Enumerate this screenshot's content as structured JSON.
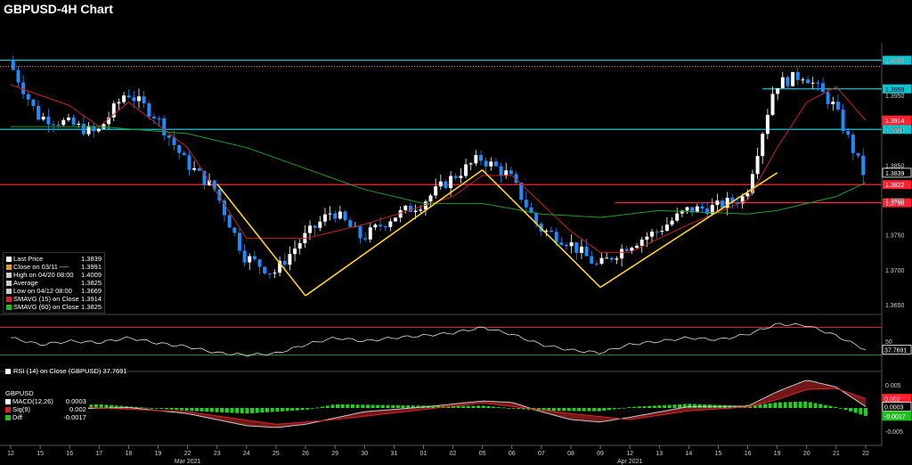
{
  "title": "GBPUSD-4H Chart",
  "colors": {
    "background": "#000000",
    "candle_up": "#ffffff",
    "candle_down": "#1e8cff",
    "sma15": "#c8201e",
    "sma60": "#1e9e2a",
    "cyan_level": "#00c8d2",
    "red_level": "#ff2030",
    "pattern": "#ffd21e",
    "rsi_line": "#dddddd"
  },
  "legend": [
    {
      "label": "Last Price",
      "value": "1.3839",
      "color": "#ffffff"
    },
    {
      "label": "Close on 03/11 ----",
      "value": "1.3991",
      "color": "#e69a22"
    },
    {
      "label": "High on 04/20 08:00",
      "value": "1.4009",
      "color": "#cccccc"
    },
    {
      "label": "Average",
      "value": "1.3825",
      "color": "#cccccc"
    },
    {
      "label": "Low on 04/12 08:00",
      "value": "1.3669",
      "color": "#cccccc"
    },
    {
      "label": "SMAVG (15) on Close",
      "value": "1.3914",
      "color": "#e02020"
    },
    {
      "label": "SMAVG (60) on Close",
      "value": "1.3825",
      "color": "#20c020"
    }
  ],
  "rsi_legend": {
    "label": "RSI (14) on Close (GBPUSD) 37.7691",
    "color": "#ffffff"
  },
  "macd_legend": {
    "title": "GBPUSD",
    "rows": [
      {
        "label": "MACD(12,26)",
        "value": "0.0003",
        "color": "#ffffff"
      },
      {
        "label": "Sig(9)",
        "value": "0.002",
        "color": "#e02020"
      },
      {
        "label": "Diff",
        "value": "-0.0017",
        "color": "#20c020"
      }
    ]
  },
  "chart_data": [
    {
      "type": "candlestick",
      "title": "GBPUSD-4H Chart",
      "ylim": [
        1.364,
        1.4025
      ],
      "y_ticks": [
        "1.3650",
        "1.3700",
        "1.3750",
        "1.3800",
        "1.3850",
        "1.3900",
        "1.3950",
        "1.4000"
      ],
      "x_ticks": [
        "12",
        "15",
        "16",
        "17",
        "18",
        "19",
        "22",
        "23",
        "24",
        "25",
        "26",
        "29",
        "30",
        "31",
        "01",
        "02",
        "05",
        "06",
        "07",
        "08",
        "09",
        "12",
        "13",
        "14",
        "15",
        "16",
        "19",
        "20",
        "21",
        "22"
      ],
      "month_labels": [
        {
          "label": "Mar 2021",
          "at": "22"
        },
        {
          "label": "Apr 2021",
          "at": "12"
        }
      ],
      "close_path": [
        [
          "12",
          1.4
        ],
        [
          "15",
          1.392
        ],
        [
          "16",
          1.391
        ],
        [
          "17",
          1.3895
        ],
        [
          "18",
          1.3955
        ],
        [
          "19",
          1.392
        ],
        [
          "22",
          1.3855
        ],
        [
          "23",
          1.3815
        ],
        [
          "24",
          1.372
        ],
        [
          "25",
          1.3695
        ],
        [
          "26",
          1.3745
        ],
        [
          "29",
          1.3785
        ],
        [
          "30",
          1.3745
        ],
        [
          "31",
          1.3775
        ],
        [
          "01",
          1.3795
        ],
        [
          "02",
          1.383
        ],
        [
          "05",
          1.386
        ],
        [
          "06",
          1.3835
        ],
        [
          "07",
          1.376
        ],
        [
          "08",
          1.374
        ],
        [
          "09",
          1.3705
        ],
        [
          "12",
          1.3735
        ],
        [
          "13",
          1.3755
        ],
        [
          "14",
          1.3785
        ],
        [
          "15",
          1.379
        ],
        [
          "16",
          1.3805
        ],
        [
          "19",
          1.3965
        ],
        [
          "20",
          1.398
        ],
        [
          "21",
          1.3935
        ],
        [
          "22",
          1.3839
        ]
      ],
      "series": [
        {
          "name": "SMAVG (15)",
          "last": 1.3914,
          "values": [
            [
              "12",
              1.3965
            ],
            [
              "16",
              1.3935
            ],
            [
              "17",
              1.3905
            ],
            [
              "18",
              1.394
            ],
            [
              "22",
              1.3875
            ],
            [
              "24",
              1.3745
            ],
            [
              "26",
              1.3745
            ],
            [
              "30",
              1.3765
            ],
            [
              "02",
              1.3805
            ],
            [
              "05",
              1.3835
            ],
            [
              "06",
              1.3835
            ],
            [
              "08",
              1.3755
            ],
            [
              "09",
              1.3725
            ],
            [
              "12",
              1.3725
            ],
            [
              "14",
              1.3765
            ],
            [
              "16",
              1.38
            ],
            [
              "19",
              1.3875
            ],
            [
              "20",
              1.394
            ],
            [
              "21",
              1.3962
            ],
            [
              "22",
              1.3914
            ]
          ]
        },
        {
          "name": "SMAVG (60)",
          "last": 1.3825,
          "values": [
            [
              "12",
              1.3905
            ],
            [
              "17",
              1.3905
            ],
            [
              "22",
              1.3895
            ],
            [
              "24",
              1.3875
            ],
            [
              "26",
              1.3845
            ],
            [
              "30",
              1.3815
            ],
            [
              "01",
              1.3795
            ],
            [
              "05",
              1.3795
            ],
            [
              "07",
              1.378
            ],
            [
              "09",
              1.3775
            ],
            [
              "13",
              1.3785
            ],
            [
              "16",
              1.378
            ],
            [
              "19",
              1.3785
            ],
            [
              "21",
              1.3805
            ],
            [
              "22",
              1.3825
            ]
          ]
        }
      ],
      "horizontal_levels": [
        {
          "value": 1.4,
          "label": "1.4000",
          "color": "#00c8d2"
        },
        {
          "value": 1.3959,
          "label": "1.3959",
          "color": "#00c8d2",
          "from": "19"
        },
        {
          "value": 1.3901,
          "label": "1.3901",
          "color": "#00c8d2"
        },
        {
          "value": 1.3822,
          "label": "1.3822",
          "color": "#ff2030"
        },
        {
          "value": 1.3796,
          "label": "1.3796",
          "color": "#ff2030",
          "from": "12"
        },
        {
          "value": 1.3991,
          "label": "",
          "color": "#e69a22",
          "style": "dotted"
        }
      ],
      "value_tags": [
        {
          "value": 1.3914,
          "label": "1.3914",
          "color": "#ff2030"
        },
        {
          "value": 1.3839,
          "label": "1.3839",
          "color": "#ffffff"
        }
      ],
      "pattern_lines": [
        [
          [
            "23",
            1.3823
          ],
          [
            "26",
            1.3663
          ]
        ],
        [
          [
            "26",
            1.3663
          ],
          [
            "05",
            1.3843
          ]
        ],
        [
          [
            "05",
            1.3843
          ],
          [
            "09",
            1.3675
          ]
        ],
        [
          [
            "09",
            1.3675
          ],
          [
            "19",
            1.3839
          ]
        ]
      ]
    },
    {
      "type": "line",
      "title": "RSI (14) on Close (GBPUSD)",
      "ylim": [
        15,
        85
      ],
      "y_ticks": [
        "50"
      ],
      "levels": [
        {
          "value": 70,
          "color": "#ff2030"
        },
        {
          "value": 30,
          "color": "#1e9e2a"
        }
      ],
      "last": 37.7691,
      "last_label": "37.7691",
      "values": [
        [
          "12",
          55
        ],
        [
          "15",
          45
        ],
        [
          "16",
          50
        ],
        [
          "17",
          48
        ],
        [
          "18",
          55
        ],
        [
          "19",
          47
        ],
        [
          "22",
          42
        ],
        [
          "23",
          33
        ],
        [
          "24",
          30
        ],
        [
          "25",
          32
        ],
        [
          "26",
          45
        ],
        [
          "29",
          55
        ],
        [
          "30",
          50
        ],
        [
          "31",
          55
        ],
        [
          "01",
          58
        ],
        [
          "02",
          62
        ],
        [
          "05",
          70
        ],
        [
          "06",
          60
        ],
        [
          "07",
          45
        ],
        [
          "08",
          37
        ],
        [
          "09",
          33
        ],
        [
          "12",
          45
        ],
        [
          "13",
          50
        ],
        [
          "14",
          55
        ],
        [
          "15",
          52
        ],
        [
          "16",
          60
        ],
        [
          "19",
          75
        ],
        [
          "20",
          73
        ],
        [
          "21",
          58
        ],
        [
          "22",
          37.77
        ]
      ]
    },
    {
      "type": "bar",
      "title": "MACD(12,26)",
      "ylim": [
        -0.0065,
        0.0065
      ],
      "y_ticks": [
        "0.005",
        "0.000",
        "-0.005"
      ],
      "value_tags": [
        {
          "value": 0.002,
          "label": "0.002",
          "color": "#ff2030"
        },
        {
          "value": 0.0003,
          "label": "0.0003",
          "color": "#ffffff"
        },
        {
          "value": -0.0017,
          "label": "-0.0017",
          "color": "#20c020"
        }
      ],
      "macd": [
        [
          "12",
          0.0005
        ],
        [
          "16",
          -0.0002
        ],
        [
          "18",
          0.0001
        ],
        [
          "22",
          -0.0012
        ],
        [
          "24",
          -0.0038
        ],
        [
          "25",
          -0.0042
        ],
        [
          "26",
          -0.0035
        ],
        [
          "30",
          -0.0008
        ],
        [
          "01",
          0.0002
        ],
        [
          "05",
          0.0015
        ],
        [
          "06",
          0.0012
        ],
        [
          "07",
          -0.0008
        ],
        [
          "08",
          -0.0025
        ],
        [
          "09",
          -0.003
        ],
        [
          "12",
          -0.002
        ],
        [
          "14",
          0.0003
        ],
        [
          "16",
          0.0004
        ],
        [
          "19",
          0.0035
        ],
        [
          "20",
          0.006
        ],
        [
          "21",
          0.0045
        ],
        [
          "22",
          0.0003
        ]
      ],
      "signal": [
        [
          "12",
          0.0008
        ],
        [
          "17",
          0.0
        ],
        [
          "22",
          -0.0008
        ],
        [
          "25",
          -0.0035
        ],
        [
          "29",
          -0.0025
        ],
        [
          "02",
          0.0004
        ],
        [
          "05",
          0.0011
        ],
        [
          "08",
          -0.0012
        ],
        [
          "12",
          -0.0025
        ],
        [
          "14",
          -0.0006
        ],
        [
          "16",
          0.0002
        ],
        [
          "19",
          0.0018
        ],
        [
          "20",
          0.004
        ],
        [
          "21",
          0.0042
        ],
        [
          "22",
          0.002
        ]
      ],
      "diff_hist": [
        [
          "12",
          -0.0003
        ],
        [
          "17",
          0.0008
        ],
        [
          "22",
          -0.0006
        ],
        [
          "24",
          -0.0012
        ],
        [
          "26",
          -0.0004
        ],
        [
          "29",
          0.0008
        ],
        [
          "31",
          0.0006
        ],
        [
          "02",
          0.0004
        ],
        [
          "05",
          0.0005
        ],
        [
          "07",
          -0.0006
        ],
        [
          "09",
          -0.0007
        ],
        [
          "12",
          0.0002
        ],
        [
          "14",
          0.0009
        ],
        [
          "16",
          0.0004
        ],
        [
          "19",
          0.0012
        ],
        [
          "20",
          0.0014
        ],
        [
          "21",
          0.0002
        ],
        [
          "22",
          -0.0017
        ]
      ]
    }
  ]
}
